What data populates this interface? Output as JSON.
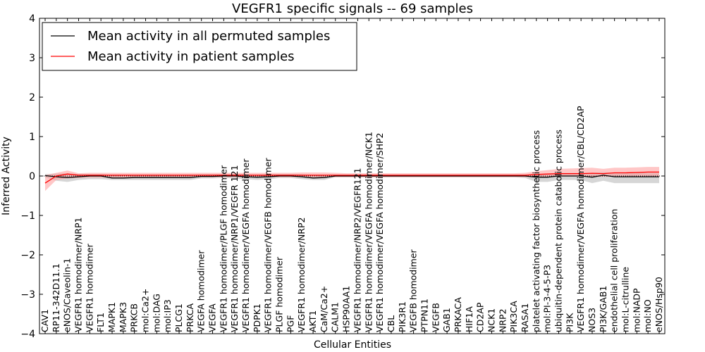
{
  "chart_data": {
    "type": "line",
    "title": "VEGFR1 specific signals -- 69 samples",
    "xlabel": "Cellular Entities",
    "ylabel": "Inferred Activity",
    "ylim": [
      -4,
      4
    ],
    "yticks": [
      "4",
      "3",
      "2",
      "1",
      "0",
      "−1",
      "−2",
      "−3",
      "−4"
    ],
    "grid": false,
    "legend_position": "top-left",
    "categories": [
      "CAV1",
      "RP11-342D11.1",
      "eNOS/Caveolin-1",
      "VEGFR1 homodimer/NRP1",
      "VEGFR1 homodimer",
      "FLT1",
      "MAPK1",
      "MAPK3",
      "PRKCB",
      "mol:Ca2+",
      "mol:DAG",
      "mol:IP3",
      "PLCG1",
      "PRKCA",
      "VEGFA homodimer",
      "VEGFA",
      "VEGFR1 homodimer/PLGF homodimer",
      "VEGFR1 homodimer/NRP1/VEGFR 121",
      "VEGFR1 homodimer/VEGFA homodimer",
      "PDPK1",
      "VEGFR1 homodimer/VEGFB homodimer",
      "PLGF homodimer",
      "PGF",
      "VEGFR1 homodimer/NRP2",
      "AKT1",
      "CaM/Ca2+",
      "CALM1",
      "HSP90AA1",
      "VEGFR1 homodimer/NRP2/VEGFR121",
      "VEGFR1 homodimer/VEGFA homodimer/NCK1",
      "VEGFR1 homodimer/VEGFA homodimer/SHP2",
      "CBL",
      "PIK3R1",
      "VEGFB homodimer",
      "PTPN11",
      "VEGFB",
      "GAB1",
      "PRKACA",
      "HIF1A",
      "CD2AP",
      "NCK1",
      "NRP2",
      "PIK3CA",
      "RASA1",
      "platelet activating factor biosynthetic process",
      "mol:PI-3-4-5-P3",
      "ubiquitin-dependent protein catabolic process",
      "PI3K",
      "VEGFR1 homodimer/VEGFA homodimer/CBL/CD2AP",
      "NOS3",
      "PI3K/GAB1",
      "endothelial cell proliferation",
      "mol:L-citrulline",
      "mol:NADP",
      "mol:NO",
      "eNOS/Hsp90"
    ],
    "series": [
      {
        "name": "Mean activity in all permuted samples",
        "color": "#000000",
        "values": [
          0.01,
          -0.02,
          -0.04,
          -0.02,
          0.0,
          0.0,
          -0.05,
          -0.05,
          -0.04,
          -0.04,
          -0.04,
          -0.04,
          -0.04,
          -0.04,
          -0.01,
          -0.01,
          0.0,
          0.0,
          -0.02,
          -0.03,
          -0.02,
          0.0,
          0.0,
          -0.02,
          -0.05,
          -0.04,
          0.0,
          0.0,
          0.0,
          0.0,
          0.0,
          0.0,
          0.0,
          0.0,
          0.0,
          0.0,
          0.0,
          0.0,
          0.0,
          0.0,
          0.0,
          0.0,
          0.0,
          0.0,
          -0.03,
          -0.03,
          0.0,
          0.0,
          0.0,
          -0.03,
          0.02,
          -0.02,
          -0.02,
          -0.02,
          -0.02,
          -0.02
        ],
        "band_low": [
          -0.03,
          -0.12,
          -0.15,
          -0.1,
          -0.08,
          -0.08,
          -0.1,
          -0.1,
          -0.1,
          -0.1,
          -0.1,
          -0.1,
          -0.1,
          -0.1,
          -0.06,
          -0.06,
          -0.05,
          -0.06,
          -0.08,
          -0.1,
          -0.08,
          -0.05,
          -0.05,
          -0.08,
          -0.1,
          -0.1,
          -0.03,
          -0.03,
          -0.03,
          -0.03,
          -0.03,
          -0.03,
          -0.03,
          -0.03,
          -0.03,
          -0.03,
          -0.03,
          -0.03,
          -0.03,
          -0.03,
          -0.03,
          -0.03,
          -0.03,
          -0.05,
          -0.15,
          -0.15,
          -0.1,
          -0.1,
          -0.1,
          -0.18,
          -0.12,
          -0.18,
          -0.18,
          -0.18,
          -0.18,
          -0.18
        ],
        "band_high": [
          0.05,
          0.06,
          0.07,
          0.05,
          0.05,
          0.05,
          0.02,
          0.02,
          0.02,
          0.02,
          0.02,
          0.02,
          0.02,
          0.02,
          0.04,
          0.04,
          0.05,
          0.05,
          0.04,
          0.03,
          0.04,
          0.05,
          0.05,
          0.04,
          0.02,
          0.02,
          0.03,
          0.03,
          0.03,
          0.03,
          0.03,
          0.03,
          0.03,
          0.03,
          0.03,
          0.03,
          0.03,
          0.03,
          0.03,
          0.03,
          0.03,
          0.03,
          0.03,
          0.03,
          0.05,
          0.06,
          0.08,
          0.08,
          0.08,
          0.08,
          0.1,
          0.08,
          0.08,
          0.08,
          0.08,
          0.08
        ],
        "band_color": "#bbbbbb"
      },
      {
        "name": "Mean activity in patient samples",
        "color": "#ff0000",
        "values": [
          -0.18,
          0.0,
          0.05,
          0.02,
          0.02,
          0.02,
          0.02,
          0.02,
          0.02,
          0.02,
          0.02,
          0.02,
          0.02,
          0.02,
          0.02,
          0.02,
          0.02,
          0.02,
          0.02,
          0.02,
          0.02,
          0.02,
          0.02,
          0.02,
          0.02,
          0.02,
          0.02,
          0.02,
          0.02,
          0.02,
          0.02,
          0.02,
          0.02,
          0.02,
          0.02,
          0.02,
          0.02,
          0.02,
          0.02,
          0.02,
          0.02,
          0.02,
          0.02,
          0.02,
          0.04,
          0.05,
          0.06,
          0.06,
          0.06,
          0.07,
          0.06,
          0.08,
          0.08,
          0.09,
          0.1,
          0.1
        ],
        "band_low": [
          -0.38,
          -0.1,
          -0.06,
          -0.05,
          -0.04,
          -0.04,
          -0.04,
          -0.04,
          -0.04,
          -0.04,
          -0.04,
          -0.04,
          -0.04,
          -0.04,
          -0.03,
          -0.03,
          -0.03,
          -0.03,
          -0.03,
          -0.03,
          -0.03,
          -0.03,
          -0.03,
          -0.03,
          -0.03,
          -0.03,
          -0.03,
          -0.03,
          -0.03,
          -0.03,
          -0.03,
          -0.03,
          -0.03,
          -0.03,
          -0.03,
          -0.03,
          -0.03,
          -0.03,
          -0.03,
          -0.03,
          -0.03,
          -0.03,
          -0.03,
          -0.03,
          -0.02,
          -0.02,
          -0.01,
          -0.01,
          -0.01,
          -0.02,
          -0.02,
          -0.02,
          -0.02,
          -0.02,
          -0.02,
          -0.02
        ],
        "band_high": [
          0.02,
          0.08,
          0.14,
          0.07,
          0.08,
          0.08,
          0.08,
          0.08,
          0.08,
          0.08,
          0.08,
          0.08,
          0.08,
          0.08,
          0.08,
          0.08,
          0.08,
          0.08,
          0.08,
          0.08,
          0.08,
          0.08,
          0.08,
          0.09,
          0.09,
          0.09,
          0.08,
          0.07,
          0.07,
          0.07,
          0.07,
          0.07,
          0.07,
          0.07,
          0.07,
          0.07,
          0.07,
          0.07,
          0.07,
          0.07,
          0.07,
          0.07,
          0.07,
          0.08,
          0.12,
          0.15,
          0.18,
          0.19,
          0.2,
          0.21,
          0.18,
          0.21,
          0.21,
          0.22,
          0.23,
          0.23
        ],
        "band_color": "#ff9999"
      }
    ]
  }
}
